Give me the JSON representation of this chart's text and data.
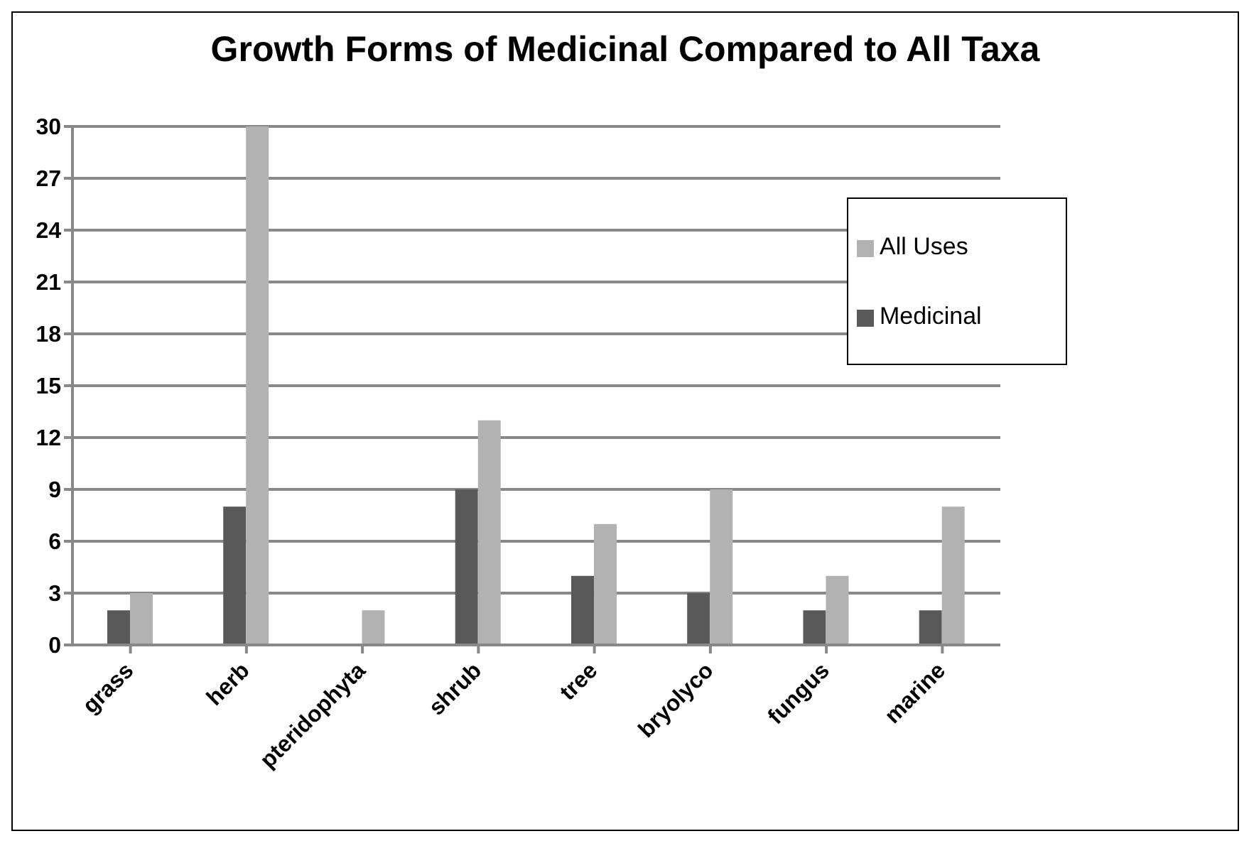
{
  "chart_data": {
    "type": "bar",
    "title": "Growth Forms of Medicinal Compared to All Taxa",
    "categories": [
      "grass",
      "herb",
      "pteridophyta",
      "shrub",
      "tree",
      "bryolyco",
      "fungus",
      "marine"
    ],
    "series": [
      {
        "name": "Medicinal",
        "color": "#595959",
        "values": [
          2,
          8,
          0,
          9,
          4,
          3,
          2,
          2
        ]
      },
      {
        "name": "All Uses",
        "color": "#b2b2b2",
        "values": [
          3,
          30,
          2,
          13,
          7,
          9,
          4,
          8
        ]
      }
    ],
    "ylim": [
      0,
      30
    ],
    "yticks": [
      0,
      3,
      6,
      9,
      12,
      15,
      18,
      21,
      24,
      27,
      30
    ],
    "grid": "y",
    "legend": "top right"
  }
}
